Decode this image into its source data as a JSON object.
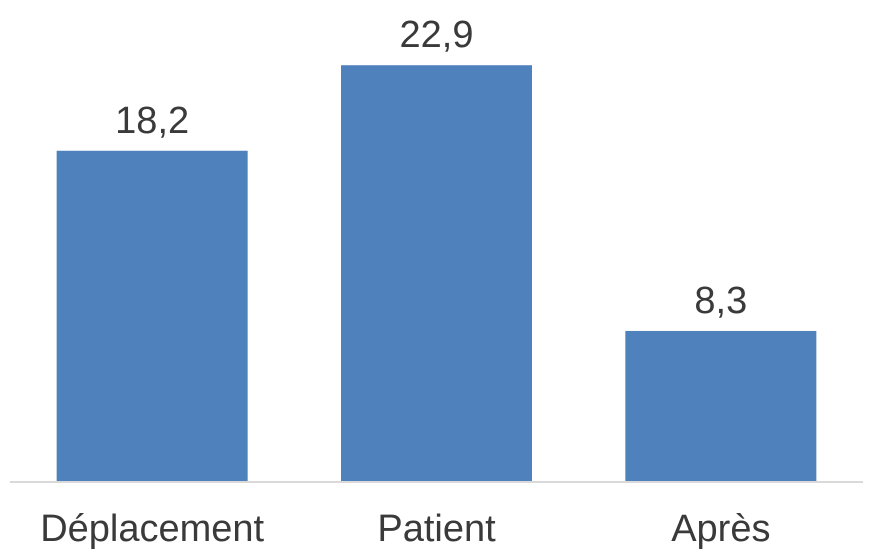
{
  "chart_data": {
    "type": "bar",
    "categories": [
      "Déplacement",
      "Patient",
      "Après"
    ],
    "values": [
      18.2,
      22.9,
      8.3
    ],
    "data_labels": [
      "18,2",
      "22,9",
      "8,3"
    ],
    "title": "",
    "xlabel": "",
    "ylabel": "",
    "ylim": [
      0,
      25
    ],
    "grid": false,
    "legend": "none",
    "bar_color": "#4f81bd",
    "axis_color": "#d9d9d9",
    "text_color": "#3a3a3a"
  }
}
